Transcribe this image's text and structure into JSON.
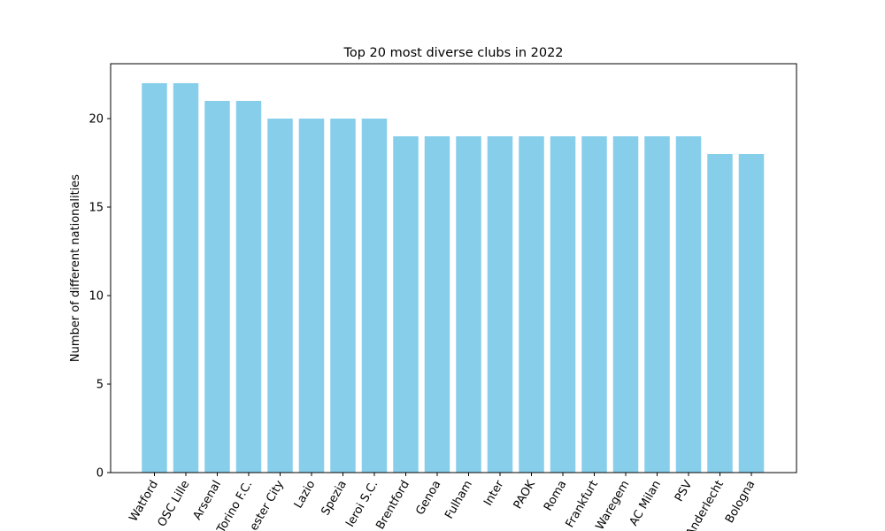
{
  "chart_data": {
    "type": "bar",
    "title": "Top 20 most diverse clubs in 2022",
    "xlabel": "",
    "ylabel": "Number of different nationalities",
    "categories": [
      "Watford",
      "OSC Lille",
      "Arsenal",
      "Torino F.C.",
      "Manchester City",
      "Lazio",
      "Spezia",
      "Panetolikos Olympiakos Pireoi S.C.",
      "Brentford",
      "Genoa",
      "Fulham",
      "Inter",
      "PAOK",
      "Roma",
      "Eintracht Frankfurt",
      "Waregem",
      "AC Milan",
      "PSV",
      "RSC Anderlecht Oud-Heverlee Leuven",
      "Bologna"
    ],
    "visible_tick_labels": [
      "Watford",
      "OSC Lille",
      "Arsenal",
      "Torino F.C.",
      "ester City",
      "Lazio",
      "Spezia",
      "leroi S.C.",
      "Brentford",
      "Genoa",
      "Fulham",
      "Inter",
      "PAOK",
      "Roma",
      "Frankfurt",
      "Waregem",
      "AC Milan",
      "PSV",
      "Anderlecht",
      "Bologna"
    ],
    "values": [
      22,
      22,
      21,
      21,
      20,
      20,
      20,
      20,
      19,
      19,
      19,
      19,
      19,
      19,
      19,
      19,
      19,
      19,
      18,
      18
    ],
    "ylim": [
      0,
      23.1
    ],
    "yticks": [
      0,
      5,
      10,
      15,
      20
    ],
    "bar_color": "#87ceeb",
    "grid": false,
    "legend": "none"
  }
}
